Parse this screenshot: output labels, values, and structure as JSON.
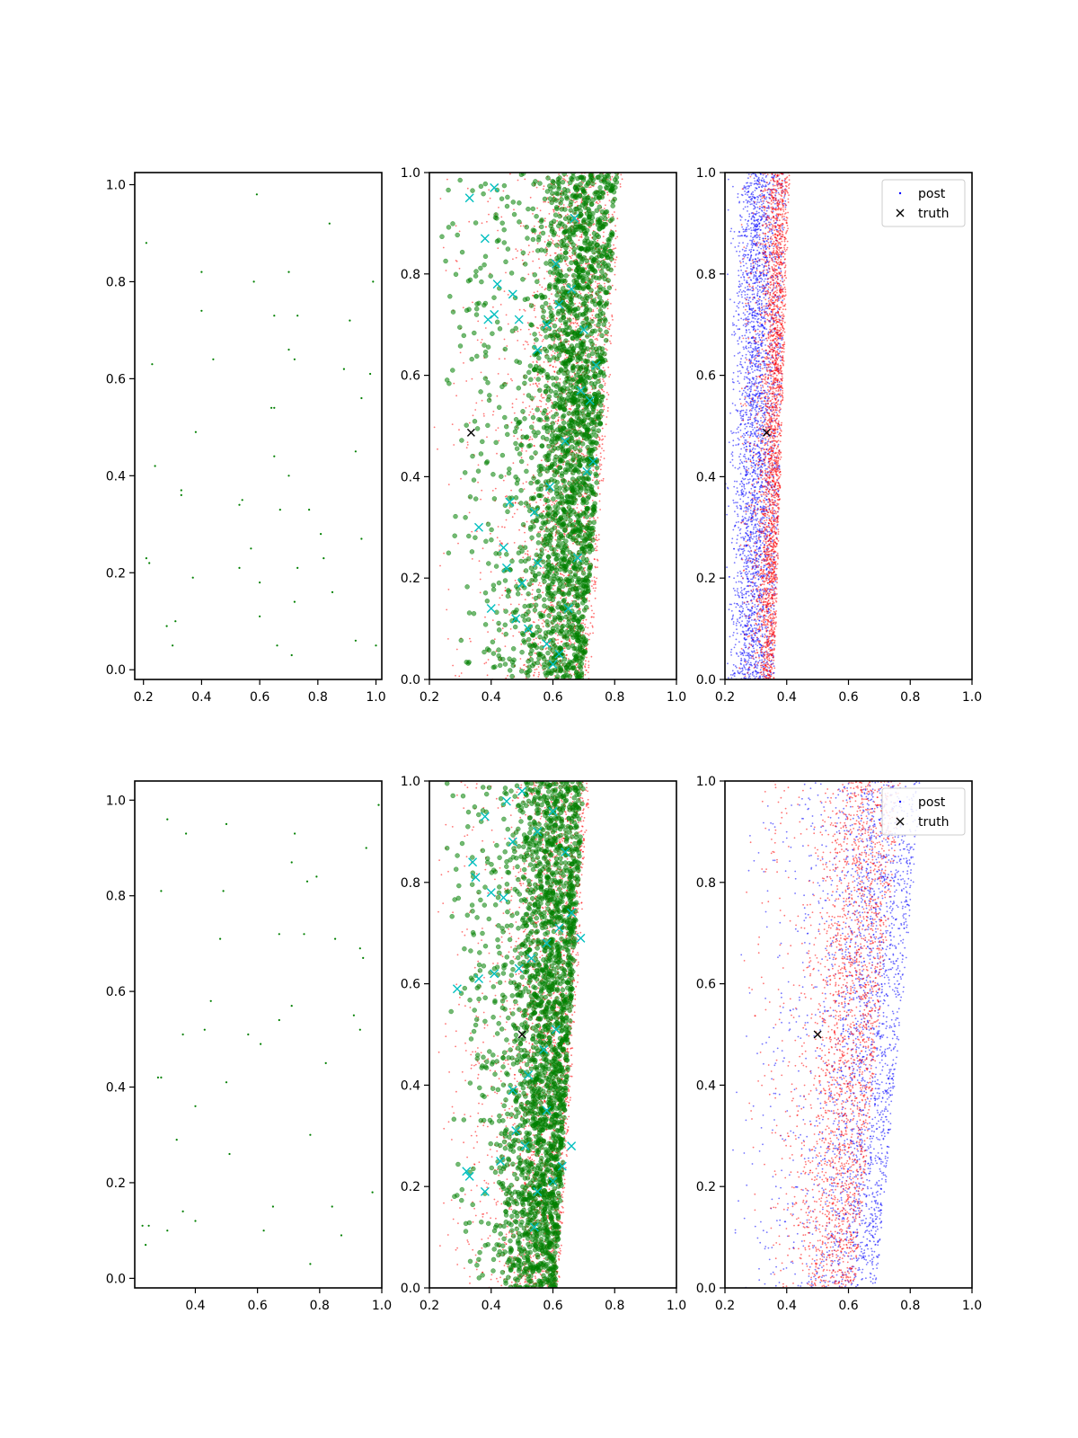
{
  "colors": {
    "green": "#008000",
    "red": "#ff0000",
    "cyan": "#00bfbf",
    "blue": "#0000ff",
    "black": "#000000"
  },
  "chart_data": [
    {
      "type": "scatter",
      "row": 0,
      "col": 0,
      "xlim": [
        0.17,
        1.02
      ],
      "ylim": [
        -0.02,
        1.025
      ],
      "xticks": [
        "0.2",
        "0.4",
        "0.6",
        "0.8",
        "1.0"
      ],
      "yticks": [
        "0.0",
        "0.2",
        "0.4",
        "0.6",
        "0.8",
        "1.0"
      ],
      "series": [
        {
          "style": "sparse-green",
          "color": "green",
          "x": [
            0.59,
            0.84,
            0.21,
            0.4,
            0.58,
            0.7,
            0.99,
            0.4,
            0.65,
            0.73,
            0.91,
            0.23,
            0.44,
            0.7,
            0.72,
            0.89,
            0.98,
            0.95,
            0.64,
            0.65,
            0.38,
            0.93,
            0.65,
            0.24,
            0.7,
            0.33,
            0.54,
            0.33,
            0.53,
            0.67,
            0.77,
            0.57,
            0.21,
            0.22,
            0.82,
            0.53,
            0.73,
            0.6,
            0.37,
            0.85,
            0.72,
            0.6,
            0.28,
            0.31,
            0.66,
            0.3,
            0.93,
            0.71,
            1.0,
            0.95,
            0.81
          ],
          "y": [
            0.98,
            0.92,
            0.88,
            0.82,
            0.8,
            0.82,
            0.8,
            0.74,
            0.73,
            0.73,
            0.72,
            0.63,
            0.64,
            0.66,
            0.64,
            0.62,
            0.61,
            0.56,
            0.54,
            0.54,
            0.49,
            0.45,
            0.44,
            0.42,
            0.4,
            0.37,
            0.35,
            0.36,
            0.34,
            0.33,
            0.33,
            0.25,
            0.23,
            0.22,
            0.23,
            0.21,
            0.21,
            0.18,
            0.19,
            0.16,
            0.14,
            0.11,
            0.09,
            0.1,
            0.05,
            0.05,
            0.06,
            0.03,
            0.05,
            0.27,
            0.28
          ]
        }
      ]
    },
    {
      "type": "scatter",
      "row": 0,
      "col": 1,
      "xlim": [
        0.2,
        1.0
      ],
      "ylim": [
        0.0,
        1.0
      ],
      "xticks": [
        "0.2",
        "0.4",
        "0.6",
        "0.8",
        "1.0"
      ],
      "yticks": [
        "0.0",
        "0.2",
        "0.4",
        "0.6",
        "0.8",
        "1.0"
      ],
      "series": [
        {
          "style": "red-dots",
          "color": "red",
          "count": 2500,
          "band": {
            "left0": 0.22,
            "left1": 0.2,
            "right0": 0.72,
            "right1": 0.83,
            "peak": 0.62,
            "spread": 0.14
          }
        },
        {
          "style": "green-circles",
          "color": "green",
          "count": 2200,
          "band": {
            "left0": 0.27,
            "left1": 0.2,
            "right0": 0.7,
            "right1": 0.81,
            "peak": 0.63,
            "spread": 0.13
          }
        },
        {
          "style": "cyan-x",
          "color": "cyan",
          "x": [
            0.33,
            0.41,
            0.38,
            0.42,
            0.47,
            0.49,
            0.55,
            0.58,
            0.62,
            0.66,
            0.7,
            0.74,
            0.36,
            0.4,
            0.45,
            0.46,
            0.48,
            0.52,
            0.55,
            0.58,
            0.6,
            0.62,
            0.65,
            0.68,
            0.71,
            0.73,
            0.72,
            0.69,
            0.64,
            0.59,
            0.54,
            0.5,
            0.44,
            0.41,
            0.39,
            0.61,
            0.67
          ],
          "y": [
            0.95,
            0.97,
            0.87,
            0.78,
            0.76,
            0.71,
            0.65,
            0.7,
            0.74,
            0.77,
            0.69,
            0.62,
            0.3,
            0.14,
            0.22,
            0.35,
            0.12,
            0.1,
            0.23,
            0.07,
            0.03,
            0.05,
            0.14,
            0.24,
            0.41,
            0.43,
            0.55,
            0.57,
            0.47,
            0.38,
            0.33,
            0.19,
            0.26,
            0.72,
            0.71,
            0.82,
            0.91
          ]
        }
      ],
      "truth": {
        "x": 0.335,
        "y": 0.487
      }
    },
    {
      "type": "scatter",
      "row": 0,
      "col": 2,
      "xlim": [
        0.2,
        1.0
      ],
      "ylim": [
        0.0,
        1.0
      ],
      "xticks": [
        "0.2",
        "0.4",
        "0.6",
        "0.8",
        "1.0"
      ],
      "yticks": [
        "0.0",
        "0.2",
        "0.4",
        "0.6",
        "0.8",
        "1.0"
      ],
      "series": [
        {
          "style": "blue-dots",
          "color": "blue",
          "name": "post",
          "count": 3000,
          "band": {
            "left0": 0.2,
            "left1": 0.2,
            "right0": 0.36,
            "right1": 0.4,
            "peak": 0.28,
            "spread": 0.06
          }
        },
        {
          "style": "red-dots",
          "color": "red",
          "count": 2600,
          "band": {
            "left0": 0.24,
            "left1": 0.24,
            "right0": 0.36,
            "right1": 0.41,
            "peak": 0.34,
            "spread": 0.04
          }
        }
      ],
      "truth": {
        "x": 0.335,
        "y": 0.487
      },
      "legend": {
        "location": "top-right",
        "entries": [
          {
            "label": "post",
            "marker": "dot",
            "color": "blue"
          },
          {
            "label": "truth",
            "marker": "x",
            "color": "black"
          }
        ]
      }
    },
    {
      "type": "scatter",
      "row": 1,
      "col": 0,
      "xlim": [
        0.205,
        1.0
      ],
      "ylim": [
        -0.02,
        1.04
      ],
      "xticks": [
        "0.4",
        "0.6",
        "0.8",
        "1.0"
      ],
      "yticks": [
        "0.0",
        "0.2",
        "0.4",
        "0.6",
        "0.8",
        "1.0"
      ],
      "series": [
        {
          "style": "sparse-green",
          "color": "green",
          "x": [
            0.99,
            0.31,
            0.37,
            0.5,
            0.72,
            0.95,
            0.29,
            0.49,
            0.76,
            0.79,
            0.71,
            0.48,
            0.67,
            0.75,
            0.85,
            0.94,
            0.93,
            0.45,
            0.71,
            0.36,
            0.43,
            0.57,
            0.61,
            0.67,
            0.93,
            0.91,
            0.28,
            0.29,
            0.82,
            0.4,
            0.5,
            0.34,
            0.77,
            0.51,
            0.36,
            0.65,
            0.84,
            0.4,
            0.62,
            0.25,
            0.24,
            0.31,
            0.87,
            0.97,
            0.77,
            0.23
          ],
          "y": [
            0.99,
            0.96,
            0.93,
            0.95,
            0.93,
            0.9,
            0.81,
            0.81,
            0.83,
            0.84,
            0.87,
            0.71,
            0.72,
            0.72,
            0.71,
            0.67,
            0.69,
            0.58,
            0.57,
            0.51,
            0.52,
            0.51,
            0.49,
            0.54,
            0.52,
            0.55,
            0.42,
            0.42,
            0.45,
            0.36,
            0.41,
            0.29,
            0.3,
            0.26,
            0.14,
            0.15,
            0.15,
            0.12,
            0.1,
            0.11,
            0.07,
            0.1,
            0.09,
            0.18,
            0.03,
            0.11
          ]
        }
      ]
    },
    {
      "type": "scatter",
      "row": 1,
      "col": 1,
      "xlim": [
        0.2,
        1.0
      ],
      "ylim": [
        0.0,
        1.0
      ],
      "xticks": [
        "0.2",
        "0.4",
        "0.6",
        "0.8",
        "1.0"
      ],
      "yticks": [
        "0.0",
        "0.2",
        "0.4",
        "0.6",
        "0.8",
        "1.0"
      ],
      "series": [
        {
          "style": "red-dots",
          "color": "red",
          "count": 2500,
          "band": {
            "left0": 0.22,
            "left1": 0.2,
            "right0": 0.62,
            "right1": 0.72,
            "peak": 0.55,
            "spread": 0.12
          }
        },
        {
          "style": "green-circles",
          "color": "green",
          "count": 2300,
          "band": {
            "left0": 0.26,
            "left1": 0.2,
            "right0": 0.61,
            "right1": 0.7,
            "peak": 0.55,
            "spread": 0.12
          }
        },
        {
          "style": "cyan-x",
          "color": "cyan",
          "x": [
            0.45,
            0.5,
            0.38,
            0.34,
            0.47,
            0.55,
            0.6,
            0.64,
            0.29,
            0.36,
            0.41,
            0.49,
            0.53,
            0.58,
            0.62,
            0.66,
            0.69,
            0.32,
            0.33,
            0.38,
            0.43,
            0.48,
            0.51,
            0.55,
            0.6,
            0.63,
            0.66,
            0.61,
            0.57,
            0.52,
            0.47,
            0.44,
            0.4,
            0.35,
            0.58,
            0.54
          ],
          "y": [
            0.96,
            0.98,
            0.93,
            0.84,
            0.88,
            0.9,
            0.94,
            0.86,
            0.59,
            0.61,
            0.62,
            0.63,
            0.65,
            0.68,
            0.71,
            0.74,
            0.69,
            0.23,
            0.22,
            0.19,
            0.25,
            0.31,
            0.28,
            0.19,
            0.21,
            0.24,
            0.28,
            0.51,
            0.47,
            0.42,
            0.39,
            0.77,
            0.78,
            0.81,
            0.35,
            0.12
          ]
        }
      ],
      "truth": {
        "x": 0.5,
        "y": 0.5
      }
    },
    {
      "type": "scatter",
      "row": 1,
      "col": 2,
      "xlim": [
        0.2,
        1.0
      ],
      "ylim": [
        0.0,
        1.0
      ],
      "xticks": [
        "0.2",
        "0.4",
        "0.6",
        "0.8",
        "1.0"
      ],
      "yticks": [
        "0.0",
        "0.2",
        "0.4",
        "0.6",
        "0.8",
        "1.0"
      ],
      "series": [
        {
          "style": "blue-dots",
          "color": "blue",
          "name": "post",
          "count": 2400,
          "band": {
            "left0": 0.2,
            "left1": 0.22,
            "right0": 0.69,
            "right1": 0.84,
            "peak": 0.62,
            "spread": 0.14
          }
        },
        {
          "style": "red-dots",
          "color": "red",
          "count": 2400,
          "band": {
            "left0": 0.28,
            "left1": 0.22,
            "right0": 0.62,
            "right1": 0.77,
            "peak": 0.55,
            "spread": 0.12
          }
        }
      ],
      "truth": {
        "x": 0.5,
        "y": 0.5
      },
      "legend": {
        "location": "top-right",
        "entries": [
          {
            "label": "post",
            "marker": "dot",
            "color": "blue"
          },
          {
            "label": "truth",
            "marker": "x",
            "color": "black"
          }
        ]
      }
    }
  ]
}
